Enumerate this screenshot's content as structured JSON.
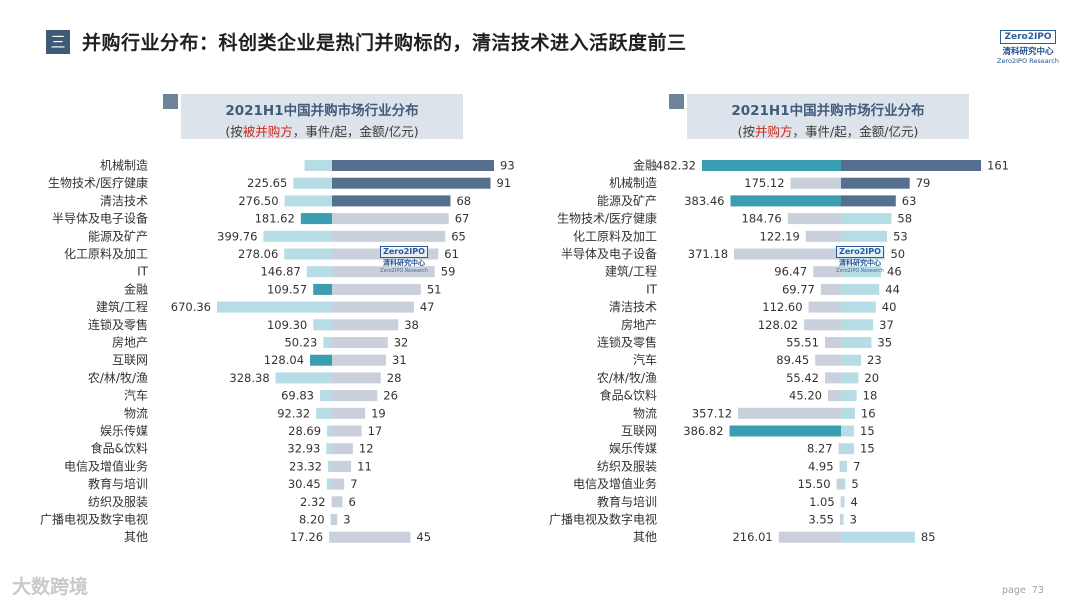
{
  "header": {
    "menu_glyph": "三",
    "title": "并购行业分布：科创类企业是热门并购标的，清洁技术进入活跃度前三",
    "logo_box": "Zero2IPO",
    "logo_cn": "清科研究中心",
    "logo_en": "Zero2IPO Research"
  },
  "watermark": {
    "box": "Zero2IPO",
    "cn": "清科研究中心",
    "en": "Zero2IPO Research"
  },
  "colors": {
    "count_dark": "#566f8e",
    "count_light": "#c9cfdb",
    "amount_highlight": "#3a9db0",
    "amount_light": "#b6dce5",
    "left_amount_default": "#b6dce5",
    "left_count_default": "#c9cfdb",
    "right_amount_default": "#c9cfdb",
    "right_count_default": "#b6dce5"
  },
  "chart_data": [
    {
      "type": "bar",
      "title": "2021H1中国并购市场行业分布",
      "subtitle_parts": [
        "(按",
        "被并购方",
        "，事件/起，金额/亿元)"
      ],
      "amount_unit": "亿元",
      "count_unit": "起",
      "categories": [
        "机械制造",
        "生物技术/医疗健康",
        "清洁技术",
        "半导体及电子设备",
        "能源及矿产",
        "化工原料及加工",
        "IT",
        "金融",
        "建筑/工程",
        "连锁及零售",
        "房地产",
        "互联网",
        "农/林/牧/渔",
        "汽车",
        "物流",
        "娱乐传媒",
        "食品&饮料",
        "电信及增值业务",
        "教育与培训",
        "纺织及服装",
        "广播电视及数字电视",
        "其他"
      ],
      "series": [
        {
          "name": "金额",
          "values": [
            null,
            225.65,
            276.5,
            181.62,
            399.76,
            278.06,
            146.87,
            109.57,
            670.36,
            109.3,
            50.23,
            128.04,
            328.38,
            69.83,
            92.32,
            28.69,
            32.93,
            23.32,
            30.45,
            2.32,
            8.2,
            17.26
          ],
          "bar_display": [
            160,
            null,
            null,
            null,
            null,
            null,
            null,
            null,
            null,
            null,
            null,
            null,
            null,
            null,
            null,
            null,
            null,
            null,
            null,
            null,
            null,
            null
          ],
          "highlight": [
            3,
            7,
            11
          ]
        },
        {
          "name": "事件数",
          "values": [
            93,
            91,
            68,
            67,
            65,
            61,
            59,
            51,
            47,
            38,
            32,
            31,
            28,
            26,
            19,
            17,
            12,
            11,
            7,
            6,
            3,
            45
          ],
          "highlight": [
            0,
            1,
            2
          ]
        }
      ],
      "amount_axis_max": 670.36,
      "count_axis_max": 93
    },
    {
      "type": "bar",
      "title": "2021H1中国并购市场行业分布",
      "subtitle_parts": [
        "(按",
        "并购方",
        "，事件/起，金额/亿元)"
      ],
      "amount_unit": "亿元",
      "count_unit": "起",
      "categories": [
        "金融",
        "机械制造",
        "能源及矿产",
        "生物技术/医疗健康",
        "化工原料及加工",
        "半导体及电子设备",
        "建筑/工程",
        "IT",
        "清洁技术",
        "房地产",
        "连锁及零售",
        "汽车",
        "农/林/牧/渔",
        "食品&饮料",
        "物流",
        "互联网",
        "娱乐传媒",
        "纺织及服装",
        "电信及增值业务",
        "教育与培训",
        "广播电视及数字电视",
        "其他"
      ],
      "series": [
        {
          "name": "金额",
          "values": [
            482.32,
            175.12,
            383.46,
            184.76,
            122.19,
            371.18,
            96.47,
            69.77,
            112.6,
            128.02,
            55.51,
            89.45,
            55.42,
            45.2,
            357.12,
            386.82,
            8.27,
            4.95,
            15.5,
            1.05,
            3.55,
            216.01
          ],
          "highlight": [
            0,
            2,
            15
          ]
        },
        {
          "name": "事件数",
          "values": [
            161,
            79,
            63,
            58,
            53,
            50,
            46,
            44,
            40,
            37,
            35,
            23,
            20,
            18,
            16,
            15,
            15,
            7,
            5,
            4,
            3,
            85
          ],
          "highlight": [
            0,
            1,
            2
          ]
        }
      ],
      "amount_axis_max": 482.32,
      "count_axis_max": 161
    }
  ],
  "footer": {
    "brand": "大数跨境",
    "page_label": "page",
    "page_number": "73"
  }
}
